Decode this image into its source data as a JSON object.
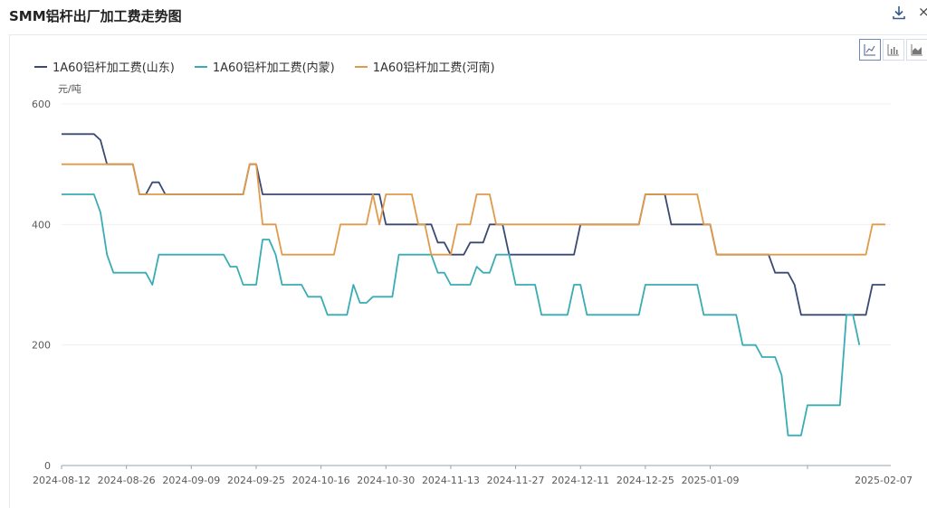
{
  "header": {
    "title": "SMM铝杆出厂加工费走势图",
    "download_icon": "download-icon",
    "close_label": "×"
  },
  "chart_switcher": {
    "items": [
      {
        "icon": "line-chart-icon",
        "active": true
      },
      {
        "icon": "bar-chart-icon",
        "active": false
      },
      {
        "icon": "area-chart-icon",
        "active": false
      }
    ]
  },
  "chart_data": {
    "type": "line",
    "unit_label": "元/吨",
    "ylim": [
      0,
      600
    ],
    "yticks": [
      "0",
      "200",
      "400",
      "600"
    ],
    "xticks": [
      "2024-08-12",
      "2024-08-26",
      "2024-09-09",
      "2024-09-25",
      "2024-10-16",
      "2024-10-30",
      "2024-11-13",
      "2024-11-27",
      "2024-12-11",
      "2024-12-25",
      "2025-01-09",
      "2025-02-07"
    ],
    "x_index_of_ticks": [
      0,
      10,
      20,
      30,
      40,
      50,
      60,
      70,
      80,
      90,
      100,
      115
    ],
    "grid": true,
    "legend_position": "top-left",
    "series": [
      {
        "name": "1A60铝杆加工费(山东)",
        "color": "#3a4a72",
        "values": [
          550,
          550,
          550,
          550,
          550,
          550,
          540,
          500,
          500,
          500,
          500,
          500,
          450,
          450,
          470,
          470,
          450,
          450,
          450,
          450,
          450,
          450,
          450,
          450,
          450,
          450,
          450,
          450,
          450,
          500,
          500,
          450,
          450,
          450,
          450,
          450,
          450,
          450,
          450,
          450,
          450,
          450,
          450,
          450,
          450,
          450,
          450,
          450,
          450,
          450,
          400,
          400,
          400,
          400,
          400,
          400,
          400,
          400,
          370,
          370,
          350,
          350,
          350,
          370,
          370,
          370,
          400,
          400,
          400,
          350,
          350,
          350,
          350,
          350,
          350,
          350,
          350,
          350,
          350,
          350,
          400,
          400,
          400,
          400,
          400,
          400,
          400,
          400,
          400,
          400,
          450,
          450,
          450,
          450,
          400,
          400,
          400,
          400,
          400,
          400,
          400,
          350,
          350,
          350,
          350,
          350,
          350,
          350,
          350,
          350,
          320,
          320,
          320,
          300,
          250,
          250,
          250,
          250,
          250,
          250,
          250,
          250,
          250,
          250,
          250,
          300,
          300,
          300
        ]
      },
      {
        "name": "1A60铝杆加工费(内蒙)",
        "color": "#3aacb4",
        "values": [
          450,
          450,
          450,
          450,
          450,
          450,
          420,
          350,
          320,
          320,
          320,
          320,
          320,
          320,
          300,
          350,
          350,
          350,
          350,
          350,
          350,
          350,
          350,
          350,
          350,
          350,
          330,
          330,
          300,
          300,
          300,
          375,
          375,
          350,
          300,
          300,
          300,
          300,
          280,
          280,
          280,
          250,
          250,
          250,
          250,
          300,
          270,
          270,
          280,
          280,
          280,
          280,
          350,
          350,
          350,
          350,
          350,
          350,
          320,
          320,
          300,
          300,
          300,
          300,
          330,
          320,
          320,
          350,
          350,
          350,
          300,
          300,
          300,
          300,
          250,
          250,
          250,
          250,
          250,
          300,
          300,
          250,
          250,
          250,
          250,
          250,
          250,
          250,
          250,
          250,
          300,
          300,
          300,
          300,
          300,
          300,
          300,
          300,
          300,
          250,
          250,
          250,
          250,
          250,
          250,
          200,
          200,
          200,
          180,
          180,
          180,
          150,
          50,
          50,
          50,
          100,
          100,
          100,
          100,
          100,
          100,
          250,
          250,
          200
        ]
      },
      {
        "name": "1A60铝杆加工费(河南)",
        "color": "#e09a4a",
        "values": [
          500,
          500,
          500,
          500,
          500,
          500,
          500,
          500,
          500,
          500,
          500,
          500,
          450,
          450,
          450,
          450,
          450,
          450,
          450,
          450,
          450,
          450,
          450,
          450,
          450,
          450,
          450,
          450,
          450,
          500,
          500,
          400,
          400,
          400,
          350,
          350,
          350,
          350,
          350,
          350,
          350,
          350,
          350,
          400,
          400,
          400,
          400,
          400,
          450,
          400,
          450,
          450,
          450,
          450,
          450,
          400,
          400,
          350,
          350,
          350,
          350,
          400,
          400,
          400,
          450,
          450,
          450,
          400,
          400,
          400,
          400,
          400,
          400,
          400,
          400,
          400,
          400,
          400,
          400,
          400,
          400,
          400,
          400,
          400,
          400,
          400,
          400,
          400,
          400,
          400,
          450,
          450,
          450,
          450,
          450,
          450,
          450,
          450,
          450,
          400,
          400,
          350,
          350,
          350,
          350,
          350,
          350,
          350,
          350,
          350,
          350,
          350,
          350,
          350,
          350,
          350,
          350,
          350,
          350,
          350,
          350,
          350,
          350,
          350,
          350,
          400,
          400,
          400
        ]
      }
    ]
  }
}
